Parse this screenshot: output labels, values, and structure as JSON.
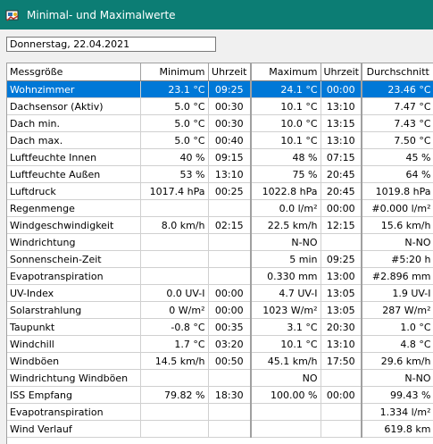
{
  "window": {
    "title": "Minimal- und Maximalwerte"
  },
  "date_field": {
    "value": "Donnerstag, 22.04.2021"
  },
  "columns": [
    "Messgröße",
    "Minimum",
    "Uhrzeit",
    "Maximum",
    "Uhrzeit",
    "Durchschnitt"
  ],
  "rows": [
    [
      "Wohnzimmer",
      "23.1 °C",
      "09:25",
      "24.1 °C",
      "00:00",
      "23.46 °C"
    ],
    [
      "Dachsensor (Aktiv)",
      "5.0 °C",
      "00:30",
      "10.1 °C",
      "13:10",
      "7.47 °C"
    ],
    [
      "Dach min.",
      "5.0 °C",
      "00:30",
      "10.0 °C",
      "13:15",
      "7.43 °C"
    ],
    [
      "Dach max.",
      "5.0 °C",
      "00:40",
      "10.1 °C",
      "13:10",
      "7.50 °C"
    ],
    [
      "Luftfeuchte Innen",
      "40 %",
      "09:15",
      "48 %",
      "07:15",
      "45 %"
    ],
    [
      "Luftfeuchte Außen",
      "53 %",
      "13:10",
      "75 %",
      "20:45",
      "64 %"
    ],
    [
      "Luftdruck",
      "1017.4 hPa",
      "00:25",
      "1022.8 hPa",
      "20:45",
      "1019.8 hPa"
    ],
    [
      "Regenmenge",
      "",
      "",
      "0.0 l/m²",
      "00:00",
      "#0.000 l/m²"
    ],
    [
      "Windgeschwindigkeit",
      "8.0 km/h",
      "02:15",
      "22.5 km/h",
      "12:15",
      "15.6 km/h"
    ],
    [
      "Windrichtung",
      "",
      "",
      "N-NO",
      "",
      "N-NO"
    ],
    [
      "Sonnenschein-Zeit",
      "",
      "",
      "5 min",
      "09:25",
      "#5:20 h"
    ],
    [
      "Evapotranspiration",
      "",
      "",
      "0.330 mm",
      "13:00",
      "#2.896 mm"
    ],
    [
      "UV-Index",
      "0.0 UV-I",
      "00:00",
      "4.7 UV-I",
      "13:05",
      "1.9 UV-I"
    ],
    [
      "Solarstrahlung",
      "0 W/m²",
      "00:00",
      "1023 W/m²",
      "13:05",
      "287 W/m²"
    ],
    [
      "Taupunkt",
      "-0.8 °C",
      "00:35",
      "3.1 °C",
      "20:30",
      "1.0 °C"
    ],
    [
      "Windchill",
      "1.7 °C",
      "03:20",
      "10.1 °C",
      "13:10",
      "4.8 °C"
    ],
    [
      "Windböen",
      "14.5 km/h",
      "00:50",
      "45.1 km/h",
      "17:50",
      "29.6 km/h"
    ],
    [
      "Windrichtung Windböen",
      "",
      "",
      "NO",
      "",
      "N-NO"
    ],
    [
      "ISS Empfang",
      "79.82 %",
      "18:30",
      "100.00 %",
      "00:00",
      "99.43 %"
    ],
    [
      "Evapotranspiration",
      "",
      "",
      "",
      "",
      "1.334 l/m²"
    ],
    [
      "Wind Verlauf",
      "",
      "",
      "",
      "",
      "619.8 km"
    ]
  ],
  "selected_row": 0
}
